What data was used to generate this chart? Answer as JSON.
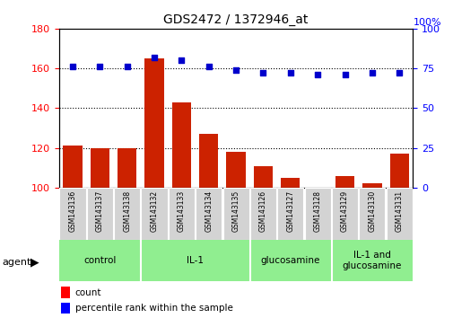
{
  "title": "GDS2472 / 1372946_at",
  "samples": [
    "GSM143136",
    "GSM143137",
    "GSM143138",
    "GSM143132",
    "GSM143133",
    "GSM143134",
    "GSM143135",
    "GSM143126",
    "GSM143127",
    "GSM143128",
    "GSM143129",
    "GSM143130",
    "GSM143131"
  ],
  "bar_values": [
    121,
    120,
    120,
    165,
    143,
    127,
    118,
    111,
    105,
    100,
    106,
    102,
    117
  ],
  "percentile_values": [
    76,
    76,
    76,
    82,
    80,
    76,
    74,
    72,
    72,
    71,
    71,
    72,
    72
  ],
  "group_spans": [
    {
      "label": "control",
      "start": 0,
      "end": 2
    },
    {
      "label": "IL-1",
      "start": 3,
      "end": 6
    },
    {
      "label": "glucosamine",
      "start": 7,
      "end": 9
    },
    {
      "label": "IL-1 and\nglucosamine",
      "start": 10,
      "end": 12
    }
  ],
  "group_color": "#90EE90",
  "bar_color": "#CC2200",
  "scatter_color": "#0000CC",
  "left_ylim": [
    100,
    180
  ],
  "left_yticks": [
    100,
    120,
    140,
    160,
    180
  ],
  "right_ylim": [
    0,
    100
  ],
  "right_yticks": [
    0,
    25,
    50,
    75,
    100
  ],
  "dotted_line_levels": [
    120,
    140,
    160
  ],
  "count_label": "count",
  "percentile_label": "percentile rank within the sample",
  "agent_label": "agent",
  "sample_bg_color": "#d3d3d3",
  "plot_bg": "#ffffff",
  "right_top_label": "100%"
}
